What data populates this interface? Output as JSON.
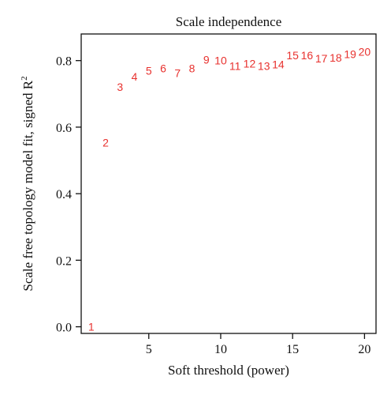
{
  "chart_data": {
    "type": "scatter",
    "title": "Scale independence",
    "xlabel": "Soft threshold (power)",
    "ylabel": "Scale free topology model fit, signed R",
    "ylabel_superscript": "2",
    "xlim": [
      0.3,
      20.8
    ],
    "ylim": [
      -0.02,
      0.88
    ],
    "xticks": [
      5,
      10,
      15,
      20
    ],
    "xtick_labels": [
      "5",
      "10",
      "15",
      "20"
    ],
    "yticks": [
      0.0,
      0.2,
      0.4,
      0.6,
      0.8
    ],
    "ytick_labels": [
      "0.0",
      "0.2",
      "0.4",
      "0.6",
      "0.8"
    ],
    "grid": false,
    "marker": "text-label",
    "point_color": "#e8322f",
    "points": [
      {
        "x": 1,
        "y": 0.0,
        "label": "1"
      },
      {
        "x": 2,
        "y": 0.553,
        "label": "2"
      },
      {
        "x": 3,
        "y": 0.721,
        "label": "3"
      },
      {
        "x": 4,
        "y": 0.752,
        "label": "4"
      },
      {
        "x": 5,
        "y": 0.77,
        "label": "5"
      },
      {
        "x": 6,
        "y": 0.777,
        "label": "6"
      },
      {
        "x": 7,
        "y": 0.762,
        "label": "7"
      },
      {
        "x": 8,
        "y": 0.777,
        "label": "8"
      },
      {
        "x": 9,
        "y": 0.803,
        "label": "9"
      },
      {
        "x": 10,
        "y": 0.8,
        "label": "10"
      },
      {
        "x": 11,
        "y": 0.784,
        "label": "11"
      },
      {
        "x": 12,
        "y": 0.791,
        "label": "12"
      },
      {
        "x": 13,
        "y": 0.784,
        "label": "13"
      },
      {
        "x": 14,
        "y": 0.789,
        "label": "14"
      },
      {
        "x": 15,
        "y": 0.816,
        "label": "15"
      },
      {
        "x": 16,
        "y": 0.816,
        "label": "16"
      },
      {
        "x": 17,
        "y": 0.806,
        "label": "17"
      },
      {
        "x": 18,
        "y": 0.809,
        "label": "18"
      },
      {
        "x": 19,
        "y": 0.819,
        "label": "19"
      },
      {
        "x": 20,
        "y": 0.826,
        "label": "20"
      }
    ]
  }
}
